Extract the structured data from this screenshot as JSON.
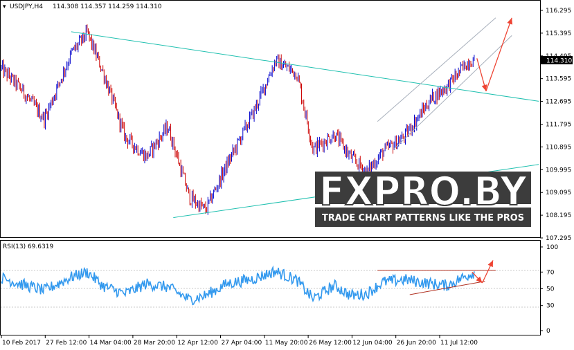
{
  "header": {
    "arrow_glyph": "▾",
    "symbol_timeframe": "USDJPY,H4",
    "ohlc": "114.308 114.357 114.259 114.310"
  },
  "chart_data": [
    {
      "type": "candlestick",
      "series_name": "USDJPY,H4",
      "price_ticks": [
        "116.295",
        "115.395",
        "114.495",
        "113.595",
        "112.695",
        "111.795",
        "110.895",
        "109.995",
        "109.095",
        "108.195",
        "107.295"
      ],
      "ylim": [
        107.295,
        116.295
      ],
      "current_price_label": "114.310",
      "x_labels": [
        "10 Feb 2017",
        "27 Feb 12:00",
        "14 Mar 04:00",
        "28 Mar 20:00",
        "12 Apr 12:00",
        "27 Apr 04:00",
        "11 May 20:00",
        "26 May 12:00",
        "12 Jun 04:00",
        "26 Jun 20:00",
        "11 Jul 12:00"
      ],
      "x_range": [
        0,
        100
      ],
      "path_keypoints": [
        {
          "x": 0,
          "p": 114.0
        },
        {
          "x": 4,
          "p": 113.1
        },
        {
          "x": 8,
          "p": 112.0
        },
        {
          "x": 13,
          "p": 114.6
        },
        {
          "x": 16,
          "p": 115.4
        },
        {
          "x": 19,
          "p": 113.8
        },
        {
          "x": 23,
          "p": 111.3
        },
        {
          "x": 27,
          "p": 110.5
        },
        {
          "x": 31,
          "p": 111.7
        },
        {
          "x": 35,
          "p": 108.9
        },
        {
          "x": 38,
          "p": 108.4
        },
        {
          "x": 42,
          "p": 110.2
        },
        {
          "x": 47,
          "p": 112.3
        },
        {
          "x": 51,
          "p": 114.3
        },
        {
          "x": 55,
          "p": 113.8
        },
        {
          "x": 58,
          "p": 110.8
        },
        {
          "x": 62,
          "p": 111.4
        },
        {
          "x": 65,
          "p": 110.5
        },
        {
          "x": 68,
          "p": 109.9
        },
        {
          "x": 71,
          "p": 110.7
        },
        {
          "x": 75,
          "p": 111.3
        },
        {
          "x": 80,
          "p": 112.8
        },
        {
          "x": 83,
          "p": 113.3
        },
        {
          "x": 87,
          "p": 114.3
        },
        {
          "x": 88,
          "p": 114.31
        }
      ],
      "trendlines": [
        {
          "name": "upper-resistance-line",
          "color": "#20c0b0",
          "points": [
            [
              13,
              115.45
            ],
            [
              100,
              112.7
            ]
          ]
        },
        {
          "name": "lower-support-line",
          "color": "#20c0b0",
          "points": [
            [
              32,
              108.1
            ],
            [
              100,
              110.2
            ]
          ]
        },
        {
          "name": "channel-upper-line",
          "color": "#a8b0bc",
          "points": [
            [
              70,
              111.9
            ],
            [
              92,
              116.0
            ]
          ]
        },
        {
          "name": "channel-lower-line",
          "color": "#a8b0bc",
          "points": [
            [
              73,
              110.8
            ],
            [
              95,
              115.3
            ]
          ]
        }
      ],
      "forecast_arrows": [
        {
          "name": "forecast-down-arrow",
          "color": "#ee4433",
          "from": [
            88.5,
            114.4
          ],
          "to": [
            90.2,
            113.1
          ]
        },
        {
          "name": "forecast-up-arrow",
          "color": "#ee4433",
          "from": [
            90.2,
            113.1
          ],
          "to": [
            95,
            116.0
          ]
        }
      ],
      "candle_colors": {
        "bull": "#0000cc",
        "bear": "#cc0000"
      }
    },
    {
      "type": "line",
      "series_name": "RSI(13)",
      "indicator_label": "RSI(13) 69.6319",
      "rsi_ticks": [
        "100",
        "70",
        "50",
        "30",
        "0"
      ],
      "ylim": [
        0,
        100
      ],
      "color": "#3399ee",
      "path_keypoints": [
        {
          "x": 0,
          "v": 63
        },
        {
          "x": 4,
          "v": 55
        },
        {
          "x": 8,
          "v": 48
        },
        {
          "x": 13,
          "v": 64
        },
        {
          "x": 16,
          "v": 70
        },
        {
          "x": 19,
          "v": 53
        },
        {
          "x": 23,
          "v": 44
        },
        {
          "x": 27,
          "v": 56
        },
        {
          "x": 31,
          "v": 52
        },
        {
          "x": 35,
          "v": 37
        },
        {
          "x": 38,
          "v": 42
        },
        {
          "x": 42,
          "v": 56
        },
        {
          "x": 47,
          "v": 62
        },
        {
          "x": 51,
          "v": 71
        },
        {
          "x": 55,
          "v": 60
        },
        {
          "x": 58,
          "v": 38
        },
        {
          "x": 62,
          "v": 54
        },
        {
          "x": 65,
          "v": 42
        },
        {
          "x": 68,
          "v": 44
        },
        {
          "x": 71,
          "v": 58
        },
        {
          "x": 75,
          "v": 61
        },
        {
          "x": 80,
          "v": 56
        },
        {
          "x": 83,
          "v": 54
        },
        {
          "x": 87,
          "v": 67
        },
        {
          "x": 88,
          "v": 69.6
        }
      ],
      "trendlines": [
        {
          "name": "rsi-resistance-line",
          "color": "#b03020",
          "points": [
            [
              70,
              72
            ],
            [
              92,
              72
            ]
          ]
        },
        {
          "name": "rsi-support-line",
          "color": "#b03020",
          "points": [
            [
              76,
              43
            ],
            [
              90,
              59
            ]
          ]
        }
      ],
      "forecast_arrows": [
        {
          "name": "rsi-forecast-down-arrow",
          "color": "#ee4433",
          "from": [
            87.6,
            70
          ],
          "to": [
            89.5,
            57
          ]
        },
        {
          "name": "rsi-forecast-up-arrow",
          "color": "#ee4433",
          "from": [
            89.5,
            57
          ],
          "to": [
            91.5,
            84
          ]
        }
      ]
    }
  ],
  "watermark": {
    "brand": "FXPRO.BY",
    "tagline": "TRADE CHART PATTERNS LIKE THE PROS"
  }
}
